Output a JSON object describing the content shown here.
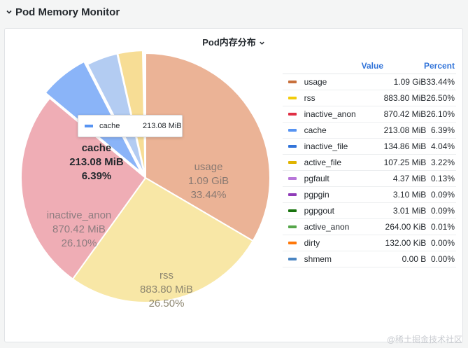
{
  "row": {
    "title": "Pod Memory Monitor"
  },
  "panel": {
    "title": "Pod内存分布"
  },
  "legend": {
    "value_header": "Value",
    "percent_header": "Percent",
    "items": [
      {
        "name": "usage",
        "value": "1.09 GiB",
        "percent": "33.44%",
        "color": "#c8703c"
      },
      {
        "name": "rss",
        "value": "883.80 MiB",
        "percent": "26.50%",
        "color": "#f2cc0c"
      },
      {
        "name": "inactive_anon",
        "value": "870.42 MiB",
        "percent": "26.10%",
        "color": "#e02f44"
      },
      {
        "name": "cache",
        "value": "213.08 MiB",
        "percent": "6.39%",
        "color": "#5794f2"
      },
      {
        "name": "inactive_file",
        "value": "134.86 MiB",
        "percent": "4.04%",
        "color": "#3274d9"
      },
      {
        "name": "active_file",
        "value": "107.25 MiB",
        "percent": "3.22%",
        "color": "#e0b400"
      },
      {
        "name": "pgfault",
        "value": "4.37 MiB",
        "percent": "0.13%",
        "color": "#b877d9"
      },
      {
        "name": "pgpgin",
        "value": "3.10 MiB",
        "percent": "0.09%",
        "color": "#8f3bb8"
      },
      {
        "name": "pgpgout",
        "value": "3.01 MiB",
        "percent": "0.09%",
        "color": "#19730e"
      },
      {
        "name": "active_anon",
        "value": "264.00 KiB",
        "percent": "0.01%",
        "color": "#56a64b"
      },
      {
        "name": "dirty",
        "value": "132.00 KiB",
        "percent": "0.00%",
        "color": "#ff780a"
      },
      {
        "name": "shmem",
        "value": "0.00 B",
        "percent": "0.00%",
        "color": "#4a85c2"
      }
    ]
  },
  "pie_labels": [
    {
      "name": "usage",
      "value": "1.09 GiB",
      "percent": "33.44%"
    },
    {
      "name": "rss",
      "value": "883.80 MiB",
      "percent": "26.50%"
    },
    {
      "name": "inactive_anon",
      "value": "870.42 MiB",
      "percent": "26.10%"
    },
    {
      "name": "cache",
      "value": "213.08 MiB",
      "percent": "6.39%"
    }
  ],
  "tooltip": {
    "name": "cache",
    "value": "213.08 MiB",
    "color": "#5794f2"
  },
  "chart_data": {
    "type": "pie",
    "title": "Pod内存分布",
    "categories": [
      "usage",
      "rss",
      "inactive_anon",
      "cache",
      "inactive_file",
      "active_file",
      "pgfault",
      "pgpgin",
      "pgpgout",
      "active_anon",
      "dirty",
      "shmem"
    ],
    "values": [
      33.44,
      26.5,
      26.1,
      6.39,
      4.04,
      3.22,
      0.13,
      0.09,
      0.09,
      0.01,
      0.0,
      0.0
    ],
    "slice_colors": [
      "#ebb396",
      "#f8e7a6",
      "#efadb5",
      "#8ab4f8",
      "#b3ccf2",
      "#f7dd95",
      "#e3c8f0",
      "#d9b5ea",
      "#a8d4a2",
      "#b8dcb2",
      "#ffc79a",
      "#b5cce6"
    ],
    "legend_position": "right"
  },
  "watermark": "@稀土掘金技术社区"
}
